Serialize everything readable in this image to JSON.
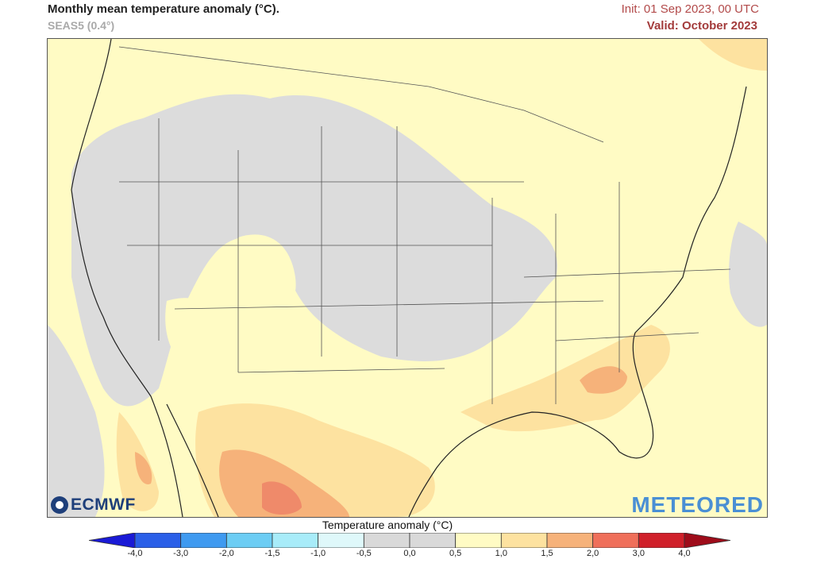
{
  "header": {
    "title": "Monthly mean temperature anomaly (°C).",
    "subtitle": "SEAS5 (0.4°)",
    "init": "Init: 01 Sep 2023, 00 UTC",
    "valid": "Valid: October 2023"
  },
  "logos": {
    "left": "ECMWF",
    "right": "METEORED"
  },
  "legend": {
    "title": "Temperature anomaly (°C)",
    "ticks": [
      "-4,0",
      "-3,0",
      "-2,0",
      "-1,5",
      "-1,0",
      "-0,5",
      "0,0",
      "0,5",
      "1,0",
      "1,5",
      "2,0",
      "3,0",
      "4,0"
    ],
    "colors": [
      "#1a1ad6",
      "#2a5fe8",
      "#3f9af0",
      "#6ccdf4",
      "#a8ecf9",
      "#dff8fa",
      "#d9d9d9",
      "#d9d9d9",
      "#fffbc4",
      "#fde2a0",
      "#f6b27a",
      "#ef6f5a",
      "#d0202a",
      "#9e0c1a"
    ]
  }
}
